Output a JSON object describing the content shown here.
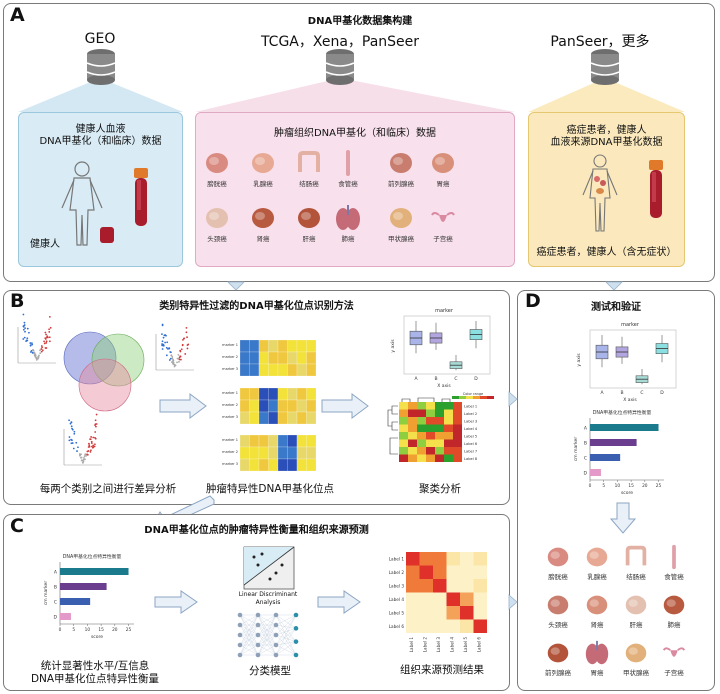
{
  "panel_a": {
    "label": "A",
    "title": "DNA甲基化数据集构建",
    "sources": [
      "GEO",
      "TCGA，Xena，PanSeer",
      "PanSeer，更多"
    ],
    "box1_text": [
      "健康人血液",
      "DNA甲基化（和临床）数据"
    ],
    "box1_bottom": "健康人",
    "box2_text": "肿瘤组织DNA甲基化（和临床）数据",
    "box3_text": [
      "癌症患者，健康人",
      "血液来源DNA甲基化数据"
    ],
    "box3_bottom": "癌症患者，健康人（含无症状）",
    "organs": [
      "膀胱癌",
      "乳腺癌",
      "结肠癌",
      "食管癌",
      "前列腺癌",
      "胃癌",
      "头颈癌",
      "肾癌",
      "肝癌",
      "肺癌",
      "甲状腺癌",
      "子宫癌"
    ]
  },
  "panel_b": {
    "label": "B",
    "title": "类别特异性过滤的DNA甲基化位点识别方法",
    "caption1": "每两个类别之间进行差异分析",
    "caption2": "肿瘤特异性DNA甲基化位点",
    "caption3": "聚类分析",
    "boxplot_title": "marker",
    "boxplot_xlabel": "X axis",
    "boxplot_ylabel": "y axis",
    "boxplot_cats": [
      "A",
      "B",
      "C",
      "D"
    ],
    "heat_legend": "Color range",
    "heat_rows": [
      "Label 1",
      "Label 2",
      "Label 3",
      "Label 4",
      "Label 5",
      "Label 6",
      "Label 7",
      "Label 8"
    ]
  },
  "panel_c": {
    "label": "C",
    "title": "DNA甲基化位点的肿瘤特异性衡量和组织来源预测",
    "bar_title": "DNA甲基化位点特异性衡量",
    "bar_ylabel": "cm marker",
    "bar_xlabel": "score",
    "caption1": [
      "统计显著性水平/互信息",
      "DNA甲基化位点特异性衡量"
    ],
    "lda_label": "Linear Discriminant Analysis",
    "caption2": "分类模型",
    "caption3": "组织来源预测结果",
    "matrix_rows": [
      "Label 1",
      "Label 2",
      "Label 3",
      "Label 4",
      "Label 5",
      "Label 6"
    ]
  },
  "panel_d": {
    "label": "D",
    "title": "测试和验证",
    "boxplot_title": "marker",
    "bar_title": "DNA甲基化位点特异性衡量",
    "bar_xlabel": "score",
    "bar_ylabel": "cm marker",
    "organs": [
      "膀胱癌",
      "乳腺癌",
      "结肠癌",
      "食管癌",
      "头颈癌",
      "肾癌",
      "肝癌",
      "肺癌",
      "前列腺癌",
      "胃癌",
      "甲状腺癌",
      "子宫癌"
    ]
  },
  "chart_data": [
    {
      "type": "bar",
      "title": "DNA甲基化位点特异性衡量",
      "categories": [
        "A",
        "B",
        "C",
        "D"
      ],
      "values": [
        25,
        17,
        11,
        4
      ],
      "xlabel": "score",
      "ylabel": "cm marker",
      "ticks": [
        "0",
        "5",
        "10",
        "15",
        "20",
        "25"
      ],
      "xlim": [
        0,
        27
      ]
    }
  ],
  "colors": {
    "bar_colors": [
      "#1b7a8c",
      "#6a3d8f",
      "#3b5fb0",
      "#e49ac8"
    ],
    "blue_region": "#cfe6f2",
    "pink_region": "#f6dce8",
    "yellow_region": "#fbe8b6"
  }
}
